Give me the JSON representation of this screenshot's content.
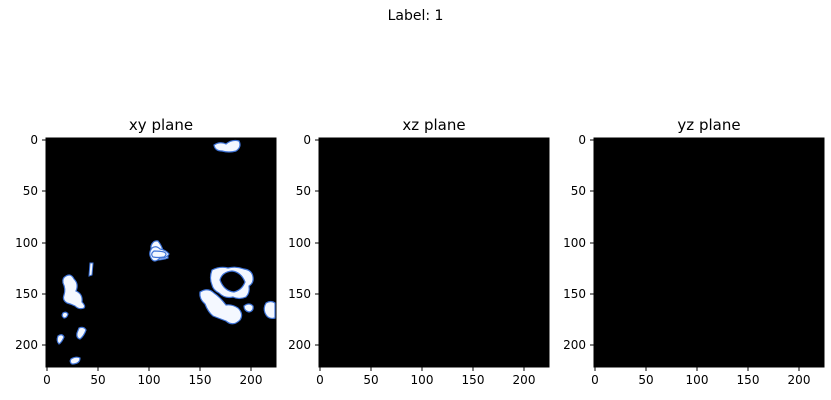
{
  "figure": {
    "suptitle": "Label: 1",
    "panels": [
      {
        "title": "xy plane",
        "x_ticks": [
          "0",
          "50",
          "100",
          "150",
          "200"
        ],
        "y_ticks": [
          "0",
          "50",
          "100",
          "150",
          "200"
        ]
      },
      {
        "title": "xz plane",
        "x_ticks": [
          "0",
          "50",
          "100",
          "150",
          "200"
        ],
        "y_ticks": [
          "0",
          "50",
          "100",
          "150",
          "200"
        ]
      },
      {
        "title": "yz plane",
        "x_ticks": [
          "0",
          "50",
          "100",
          "150",
          "200"
        ],
        "y_ticks": [
          "0",
          "50",
          "100",
          "150",
          "200"
        ]
      }
    ],
    "colors": {
      "background": "#000000",
      "blob_fill": "#f4f8ff",
      "blob_edge": "#3f74d8"
    }
  }
}
